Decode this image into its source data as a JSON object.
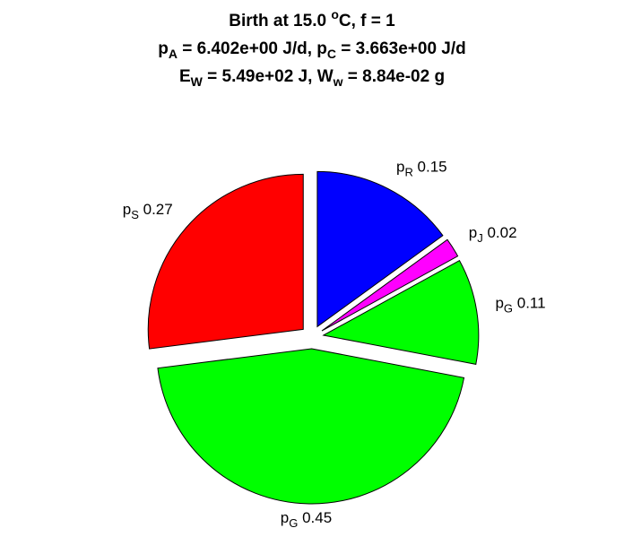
{
  "title": {
    "line1": {
      "pre": "Birth at 15.0 ",
      "sup": "o",
      "post": "C, f = 1"
    },
    "line2": {
      "a": "p",
      "a_sub": "A",
      "a_val": " = 6.402e+00 J/d, ",
      "c": "p",
      "c_sub": "C",
      "c_val": " = 3.663e+00 J/d"
    },
    "line3": {
      "e": "E",
      "e_sub": "W",
      "e_val": " = 5.49e+02 J, ",
      "w": "W",
      "w_sub": "w",
      "w_val": " = 8.84e-02 g"
    }
  },
  "chart_data": {
    "type": "pie",
    "title": "Birth at 15.0 oC, f = 1 / pA = 6.402e+00 J/d, pC = 3.663e+00 J/d / EW = 5.49e+02 J, Ww = 8.84e-02 g",
    "exploded": true,
    "slices": [
      {
        "symbol": "p",
        "sub": "R",
        "value": 0.15,
        "label": "0.15",
        "color": "#0000ff"
      },
      {
        "symbol": "p",
        "sub": "J",
        "value": 0.02,
        "label": "0.02",
        "color": "#ff00ff"
      },
      {
        "symbol": "p",
        "sub": "G",
        "value": 0.11,
        "label": "0.11",
        "color": "#00ff00"
      },
      {
        "symbol": "p",
        "sub": "G",
        "value": 0.45,
        "label": "0.45",
        "color": "#00ff00"
      },
      {
        "symbol": "p",
        "sub": "S",
        "value": 0.27,
        "label": "0.27",
        "color": "#ff0000"
      }
    ]
  }
}
